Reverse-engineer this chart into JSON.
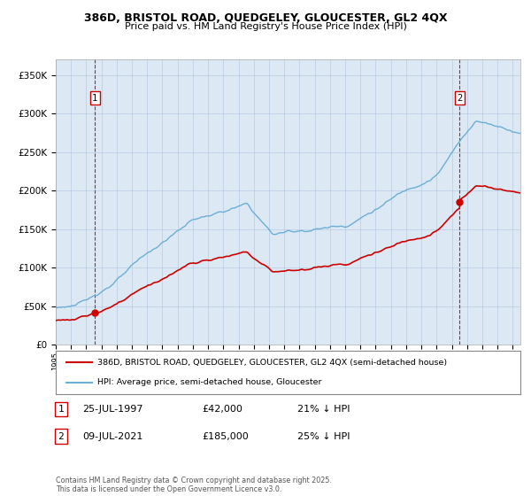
{
  "title_line1": "386D, BRISTOL ROAD, QUEDGELEY, GLOUCESTER, GL2 4QX",
  "title_line2": "Price paid vs. HM Land Registry's House Price Index (HPI)",
  "ylim": [
    0,
    370000
  ],
  "yticks": [
    0,
    50000,
    100000,
    150000,
    200000,
    250000,
    300000,
    350000
  ],
  "ytick_labels": [
    "£0",
    "£50K",
    "£100K",
    "£150K",
    "£200K",
    "£250K",
    "£300K",
    "£350K"
  ],
  "sale1_date_num": 1997.57,
  "sale1_price": 42000,
  "sale2_date_num": 2021.52,
  "sale2_price": 185000,
  "legend_entry1": "386D, BRISTOL ROAD, QUEDGELEY, GLOUCESTER, GL2 4QX (semi-detached house)",
  "legend_entry2": "HPI: Average price, semi-detached house, Gloucester",
  "table_row1": [
    "1",
    "25-JUL-1997",
    "£42,000",
    "21% ↓ HPI"
  ],
  "table_row2": [
    "2",
    "09-JUL-2021",
    "£185,000",
    "25% ↓ HPI"
  ],
  "footnote": "Contains HM Land Registry data © Crown copyright and database right 2025.\nThis data is licensed under the Open Government Licence v3.0.",
  "hpi_color": "#6baed6",
  "sale_color": "#cc0000",
  "vline_color": "#cc0000",
  "background_color": "#dce9f5",
  "plot_bg_color": "#ffffff",
  "grid_color": "#b0c4de",
  "xmin": 1995,
  "xmax": 2025.5
}
